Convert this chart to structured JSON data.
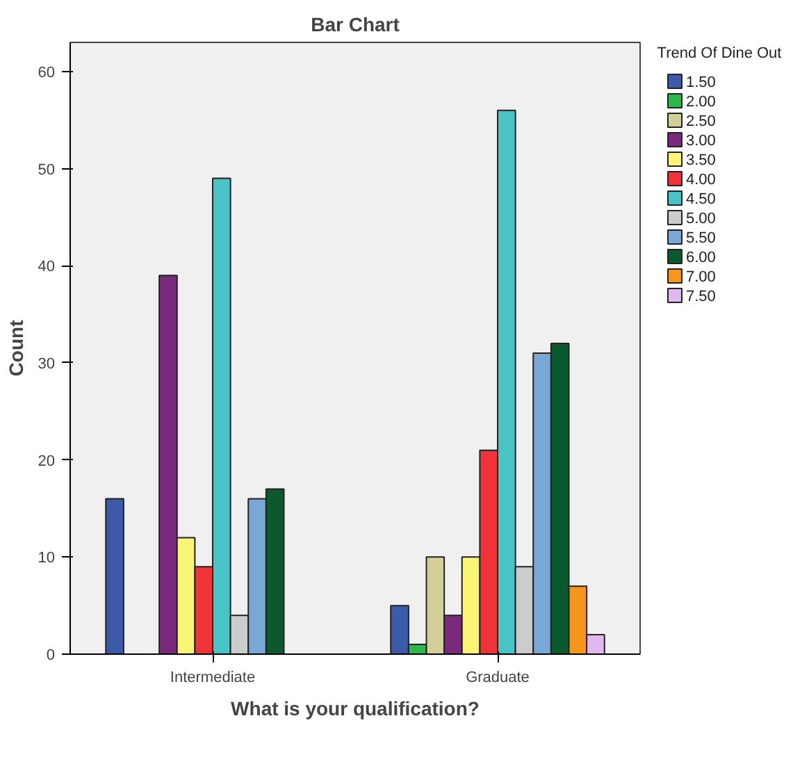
{
  "chart_data": {
    "type": "bar",
    "title": "Bar Chart",
    "xlabel": "What is your qualification?",
    "ylabel": "Count",
    "legend_title": "Trend Of Dine Out",
    "legend": "right",
    "categories": [
      "Intermediate",
      "Graduate"
    ],
    "ylim": [
      0,
      63
    ],
    "yticks": [
      0,
      10,
      20,
      30,
      40,
      50,
      60
    ],
    "grid": false,
    "series": [
      {
        "name": "1.50",
        "color": "#3d5aa8",
        "values": [
          16,
          5
        ]
      },
      {
        "name": "2.00",
        "color": "#2eb84a",
        "values": [
          null,
          1
        ]
      },
      {
        "name": "2.50",
        "color": "#d4cf98",
        "values": [
          null,
          10
        ]
      },
      {
        "name": "3.00",
        "color": "#7a2a7a",
        "values": [
          39,
          4
        ]
      },
      {
        "name": "3.50",
        "color": "#faf574",
        "values": [
          12,
          10
        ]
      },
      {
        "name": "4.00",
        "color": "#ef3338",
        "values": [
          9,
          21
        ]
      },
      {
        "name": "4.50",
        "color": "#48c3c6",
        "values": [
          49,
          56
        ]
      },
      {
        "name": "5.00",
        "color": "#cccccc",
        "values": [
          4,
          9
        ]
      },
      {
        "name": "5.50",
        "color": "#7aa8d6",
        "values": [
          16,
          31
        ]
      },
      {
        "name": "6.00",
        "color": "#0b5a2e",
        "values": [
          17,
          32
        ]
      },
      {
        "name": "7.00",
        "color": "#f7961d",
        "values": [
          null,
          7
        ]
      },
      {
        "name": "7.50",
        "color": "#dfb8ee",
        "values": [
          null,
          2
        ]
      }
    ]
  }
}
